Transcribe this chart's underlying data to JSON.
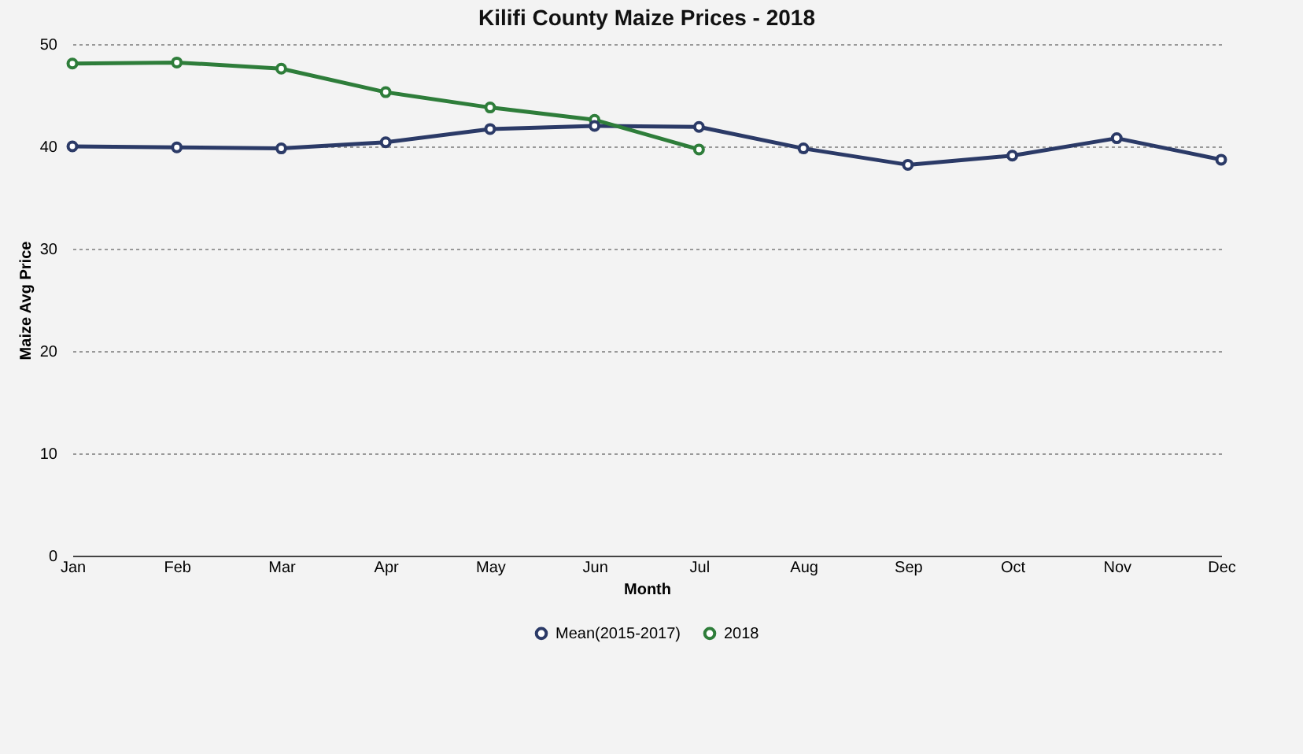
{
  "chart_data": {
    "type": "line",
    "title": "Kilifi County Maize Prices - 2018",
    "xlabel": "Month",
    "ylabel": "Maize Avg Price",
    "categories": [
      "Jan",
      "Feb",
      "Mar",
      "Apr",
      "May",
      "Jun",
      "Jul",
      "Aug",
      "Sep",
      "Oct",
      "Nov",
      "Dec"
    ],
    "series": [
      {
        "name": "Mean(2015-2017)",
        "color": "#2b3a67",
        "values": [
          40.0,
          39.9,
          39.8,
          40.4,
          41.7,
          42.0,
          41.9,
          39.8,
          38.2,
          39.1,
          40.8,
          38.7
        ]
      },
      {
        "name": "2018",
        "color": "#2e7d3a",
        "values": [
          48.1,
          48.2,
          47.6,
          45.3,
          43.8,
          42.6,
          39.7,
          null,
          null,
          null,
          null,
          null
        ]
      }
    ],
    "ylim": [
      0,
      50
    ],
    "yticks": [
      0,
      10,
      20,
      30,
      40,
      50
    ],
    "grid": "y",
    "legend": "bottom",
    "marker": "circle",
    "line_style": "solid"
  }
}
